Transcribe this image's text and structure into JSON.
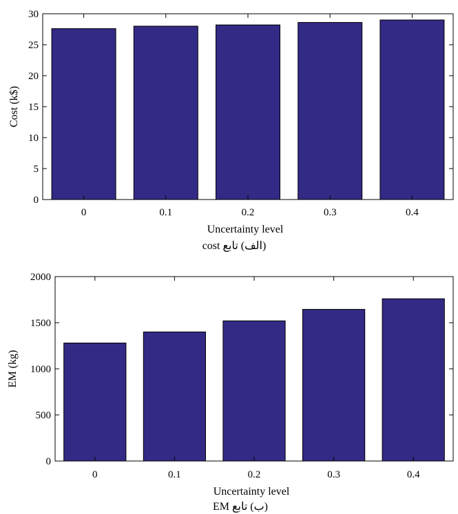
{
  "chart_data": [
    {
      "type": "bar",
      "categories": [
        "0",
        "0.1",
        "0.2",
        "0.3",
        "0.4"
      ],
      "values": [
        27.6,
        28.0,
        28.2,
        28.6,
        29.0
      ],
      "xlabel": "Uncertainty level",
      "ylabel": "Cost (k$)",
      "ylim": [
        0,
        30
      ],
      "yticks": [
        "0",
        "5",
        "10",
        "15",
        "20",
        "25",
        "30"
      ],
      "caption": "(الف) تابع cost",
      "bar_color": "#332a85",
      "grid": false
    },
    {
      "type": "bar",
      "categories": [
        "0",
        "0.1",
        "0.2",
        "0.3",
        "0.4"
      ],
      "values": [
        1280,
        1400,
        1520,
        1645,
        1760
      ],
      "xlabel": "Uncertainty level",
      "ylabel": "EM (kg)",
      "ylim": [
        0,
        2000
      ],
      "yticks": [
        "0",
        "500",
        "1000",
        "1500",
        "2000"
      ],
      "caption": "(ب) تابع EM",
      "bar_color": "#332a85",
      "grid": false
    }
  ]
}
